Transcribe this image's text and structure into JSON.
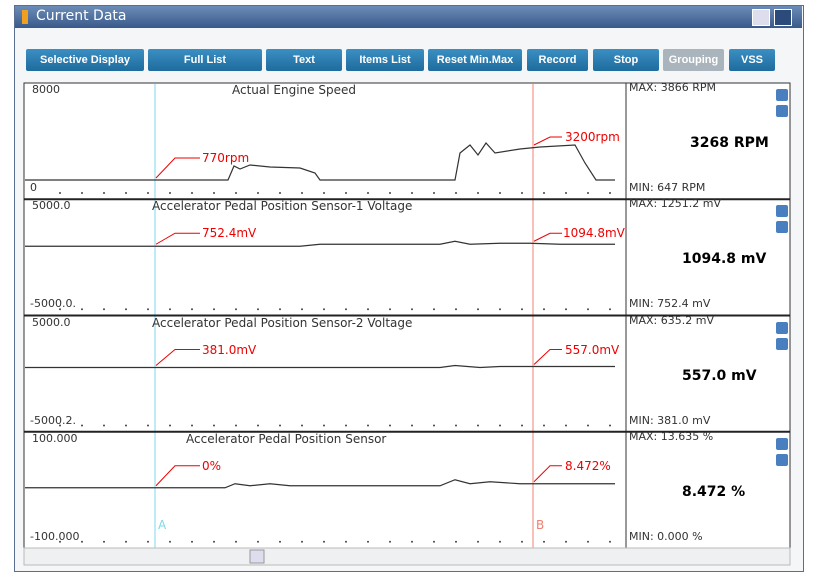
{
  "window": {
    "title": "Current Data"
  },
  "toolbar": {
    "buttons": [
      "Selective Display",
      "Full List",
      "Text",
      "Items List",
      "Reset Min.Max",
      "Record",
      "Stop",
      "Grouping",
      "VSS"
    ]
  },
  "cursors": {
    "a": "A",
    "b": "B"
  },
  "panels": [
    {
      "title": "Actual Engine Speed",
      "top": "8000",
      "bottom": "0",
      "a_value": "770rpm",
      "b_value": "3200rpm",
      "max": "MAX:   3866 RPM",
      "current": "3268 RPM",
      "min": "MIN:    647 RPM"
    },
    {
      "title": "Accelerator Pedal Position Sensor-1 Voltage",
      "top": "5000.0",
      "bottom": "-5000.0.",
      "a_value": "752.4mV",
      "b_value": "1094.8mV",
      "max": "MAX: 1251.2 mV",
      "current": "1094.8 mV",
      "min": "MIN: 752.4 mV"
    },
    {
      "title": "Accelerator Pedal Position Sensor-2 Voltage",
      "top": "5000.0",
      "bottom": "-5000.2.",
      "a_value": "381.0mV",
      "b_value": "557.0mV",
      "max": "MAX: 635.2 mV",
      "current": "557.0 mV",
      "min": "MIN: 381.0 mV"
    },
    {
      "title": "Accelerator Pedal Position Sensor",
      "top": "100.000",
      "bottom": "-100.000",
      "a_value": "0%",
      "b_value": "8.472%",
      "max": "MAX: 13.635 %",
      "current": "8.472 %",
      "min": "MIN: 0.000 %"
    }
  ]
}
